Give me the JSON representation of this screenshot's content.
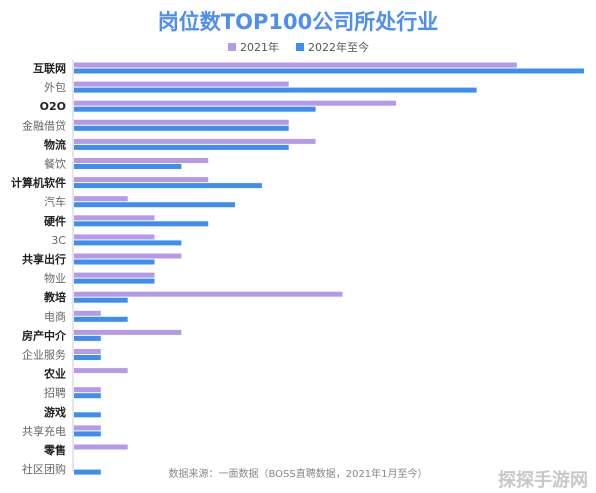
{
  "chart_data": {
    "type": "bar",
    "orientation": "horizontal",
    "title": "岗位数TOP100公司所处行业",
    "title_color": "#4d8ff0",
    "categories": [
      "互联网",
      "外包",
      "O2O",
      "金融借贷",
      "物流",
      "餐饮",
      "计算机软件",
      "汽车",
      "硬件",
      "3C",
      "共享出行",
      "物业",
      "教培",
      "电商",
      "房产中介",
      "企业服务",
      "农业",
      "招聘",
      "游戏",
      "共享充电",
      "零售",
      "社区团购"
    ],
    "bold_categories": [
      "互联网",
      "O2O",
      "物流",
      "计算机软件",
      "硬件",
      "共享出行",
      "教培",
      "房产中介",
      "农业",
      "游戏",
      "零售"
    ],
    "series": [
      {
        "name": "2021年",
        "color": "#b49ae8",
        "values": [
          16.5,
          8,
          12,
          8,
          9,
          5,
          5,
          2,
          3,
          3,
          4,
          3,
          10,
          1,
          4,
          1,
          2,
          1,
          0,
          1,
          2,
          0
        ]
      },
      {
        "name": "2022年至今",
        "color": "#3d8ef0",
        "values": [
          19,
          15,
          9,
          8,
          8,
          4,
          7,
          6,
          5,
          4,
          3,
          3,
          2,
          2,
          1,
          1,
          0,
          1,
          1,
          1,
          0,
          1
        ]
      }
    ],
    "xlim": [
      0,
      19
    ],
    "grid": false,
    "legend_position": "top-center",
    "source_note": "数据来源：一面数据（BOSS直聘数据，2021年1月至今）"
  },
  "watermark": {
    "text": "探探手游网"
  }
}
